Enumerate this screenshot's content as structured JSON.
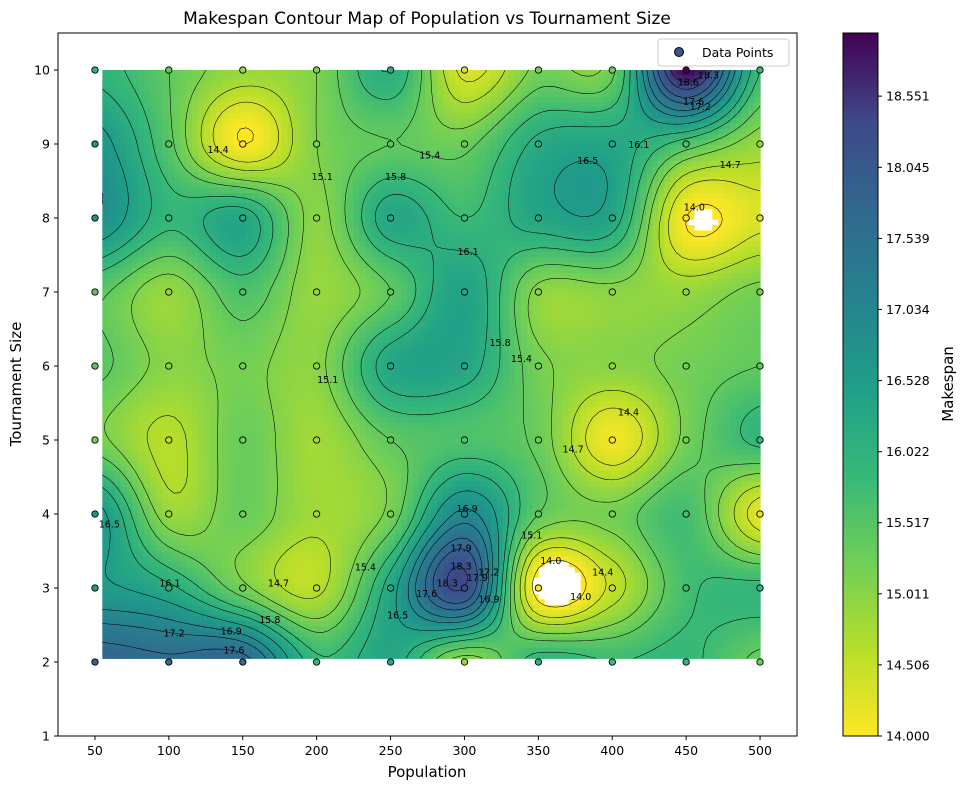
{
  "chart_data": {
    "type": "contour",
    "title": "Makespan Contour Map of Population vs Tournament Size",
    "xlabel": "Population",
    "ylabel": "Tournament Size",
    "colorbar_label": "Makespan",
    "colormap": "viridis_r",
    "xlim": [
      25,
      525
    ],
    "ylim": [
      1,
      10.5
    ],
    "x_ticks": [
      "50",
      "100",
      "150",
      "200",
      "250",
      "300",
      "350",
      "400",
      "450",
      "500"
    ],
    "y_ticks": [
      "1",
      "2",
      "3",
      "4",
      "5",
      "6",
      "7",
      "8",
      "9",
      "10"
    ],
    "colorbar_ticks": [
      "14.000",
      "14.506",
      "15.011",
      "15.517",
      "16.022",
      "16.528",
      "17.034",
      "17.539",
      "18.045",
      "18.551"
    ],
    "colorbar_range": [
      14.0,
      19.0
    ],
    "legend": {
      "label": "Data Points",
      "position": "upper right"
    },
    "populations": [
      50,
      100,
      150,
      200,
      250,
      300,
      350,
      400,
      450,
      500
    ],
    "tournament_sizes": [
      2,
      3,
      4,
      5,
      6,
      7,
      8,
      9,
      10
    ],
    "makespan_grid": [
      [
        17.9,
        17.7,
        17.8,
        15.9,
        16.3,
        14.9,
        16.0,
        15.8,
        15.9,
        15.3
      ],
      [
        16.6,
        16.2,
        15.2,
        14.6,
        16.3,
        18.3,
        13.8,
        14.5,
        15.7,
        15.9
      ],
      [
        16.7,
        14.9,
        15.3,
        14.8,
        15.2,
        17.0,
        15.4,
        15.2,
        15.7,
        14.2
      ],
      [
        15.2,
        14.6,
        15.3,
        14.8,
        15.4,
        15.6,
        15.3,
        14.1,
        15.2,
        15.9
      ],
      [
        15.5,
        15.0,
        15.2,
        15.0,
        16.3,
        16.3,
        15.2,
        15.0,
        15.2,
        15.4
      ],
      [
        15.5,
        14.9,
        15.6,
        14.9,
        15.4,
        16.4,
        15.0,
        15.0,
        14.9,
        15.2
      ],
      [
        16.9,
        15.9,
        16.3,
        15.0,
        16.3,
        15.8,
        16.3,
        16.3,
        14.0,
        14.3
      ],
      [
        16.7,
        15.5,
        14.0,
        15.1,
        15.4,
        15.3,
        16.2,
        16.3,
        15.6,
        14.9
      ],
      [
        16.0,
        15.4,
        14.9,
        15.1,
        16.1,
        14.3,
        15.2,
        15.3,
        19.0,
        15.8
      ]
    ],
    "contour_levels": [
      14.0,
      14.4,
      14.7,
      15.1,
      15.4,
      15.8,
      16.1,
      16.5,
      16.9,
      17.2,
      17.6,
      17.9,
      18.3,
      18.6
    ]
  }
}
